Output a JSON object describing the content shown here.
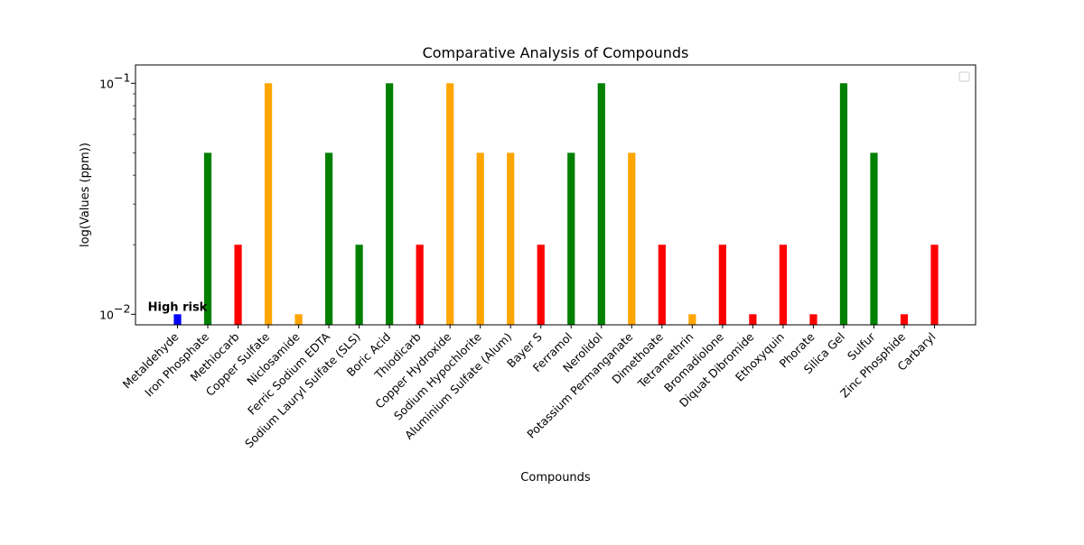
{
  "chart_data": {
    "type": "bar",
    "title": "Comparative Analysis of Compounds",
    "xlabel": "Compounds",
    "ylabel": "log(Values (ppm))",
    "y_scale": "log",
    "ylim": [
      0.009,
      0.12
    ],
    "y_major_ticks": [
      {
        "value": 0.01,
        "label_base": "10",
        "label_exp": "−2"
      },
      {
        "value": 0.1,
        "label_base": "10",
        "label_exp": "−1"
      }
    ],
    "categories": [
      "Metaldehyde",
      "Iron Phosphate",
      "Methiocarb",
      "Copper Sulfate",
      "Niclosamide",
      "Ferric Sodium EDTA",
      "Sodium Lauryl Sulfate (SLS)",
      "Boric Acid",
      "Thiodicarb",
      "Copper Hydroxide",
      "Sodium Hypochlorite",
      "Aluminium Sulfate (Alum)",
      "Bayer S",
      "Ferramol",
      "Nerolidol",
      "Potassium Permanganate",
      "Dimethoate",
      "Tetramethrin",
      "Bromadiolone",
      "Diquat Dibromide",
      "Ethoxyquin",
      "Phorate",
      "Silica Gel",
      "Sulfur",
      "Zinc Phosphide",
      "Carbaryl"
    ],
    "values": [
      0.01,
      0.05,
      0.02,
      0.1,
      0.01,
      0.05,
      0.02,
      0.1,
      0.02,
      0.1,
      0.05,
      0.05,
      0.02,
      0.05,
      0.1,
      0.05,
      0.02,
      0.01,
      0.02,
      0.01,
      0.02,
      0.01,
      0.1,
      0.05,
      0.01,
      0.02
    ],
    "colors": [
      "#0000ff",
      "#008000",
      "#ff0000",
      "#ffa500",
      "#ffa500",
      "#008000",
      "#008000",
      "#008000",
      "#ff0000",
      "#ffa500",
      "#ffa500",
      "#ffa500",
      "#ff0000",
      "#008000",
      "#008000",
      "#ffa500",
      "#ff0000",
      "#ffa500",
      "#ff0000",
      "#ff0000",
      "#ff0000",
      "#ff0000",
      "#008000",
      "#008000",
      "#ff0000",
      "#ff0000"
    ],
    "annotations": [
      {
        "text": "High risk",
        "category": "Metaldehyde",
        "value": 0.01
      }
    ],
    "legend": {
      "placement": "top-right",
      "entries": []
    },
    "grid": false
  }
}
